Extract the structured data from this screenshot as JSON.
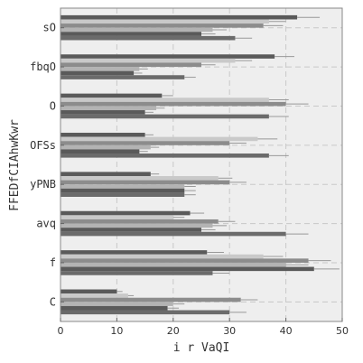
{
  "chart_data": {
    "type": "bar",
    "orientation": "horizontal",
    "title": "",
    "xlabel": "i r VaQI",
    "ylabel": "FFEDfCIAhwKwr",
    "xlim": [
      0,
      50
    ],
    "xticks": [
      0,
      10,
      20,
      30,
      40,
      50
    ],
    "grid": true,
    "legend": "none",
    "categories": [
      "sO",
      "fbqO",
      "O",
      "OFSs",
      "yPNB",
      "avq",
      "f",
      "C"
    ],
    "series": [
      {
        "color": "#5a5a5a",
        "values": [
          42,
          38,
          18,
          15,
          16,
          23,
          26,
          10
        ],
        "errors": [
          4,
          3.5,
          2,
          1.5,
          1.5,
          2.5,
          3,
          1
        ]
      },
      {
        "color": "#c9c9c9",
        "values": [
          37,
          31,
          37,
          35,
          28,
          20,
          36,
          12
        ],
        "errors": [
          3,
          3,
          3.5,
          3.5,
          2.5,
          2,
          3.5,
          1
        ]
      },
      {
        "color": "#8c8c8c",
        "values": [
          36,
          25,
          40,
          30,
          30,
          28,
          44,
          32
        ],
        "errors": [
          3.5,
          2.5,
          4,
          3,
          3,
          3,
          4,
          3
        ]
      },
      {
        "color": "#b3b3b3",
        "values": [
          27,
          14,
          17,
          16,
          22,
          27,
          40,
          20
        ],
        "errors": [
          2.5,
          1.5,
          1.5,
          1.5,
          2,
          2.5,
          4,
          2
        ]
      },
      {
        "color": "#5a5a5a",
        "values": [
          25,
          13,
          15,
          14,
          22,
          25,
          45,
          19
        ],
        "errors": [
          2.5,
          1.5,
          1.5,
          1.5,
          2,
          2.5,
          4.5,
          2
        ]
      },
      {
        "color": "#6b6b6b",
        "values": [
          31,
          22,
          37,
          37,
          22,
          40,
          27,
          30
        ],
        "errors": [
          3,
          2,
          3.5,
          3.5,
          2,
          4,
          3,
          3
        ]
      }
    ]
  }
}
